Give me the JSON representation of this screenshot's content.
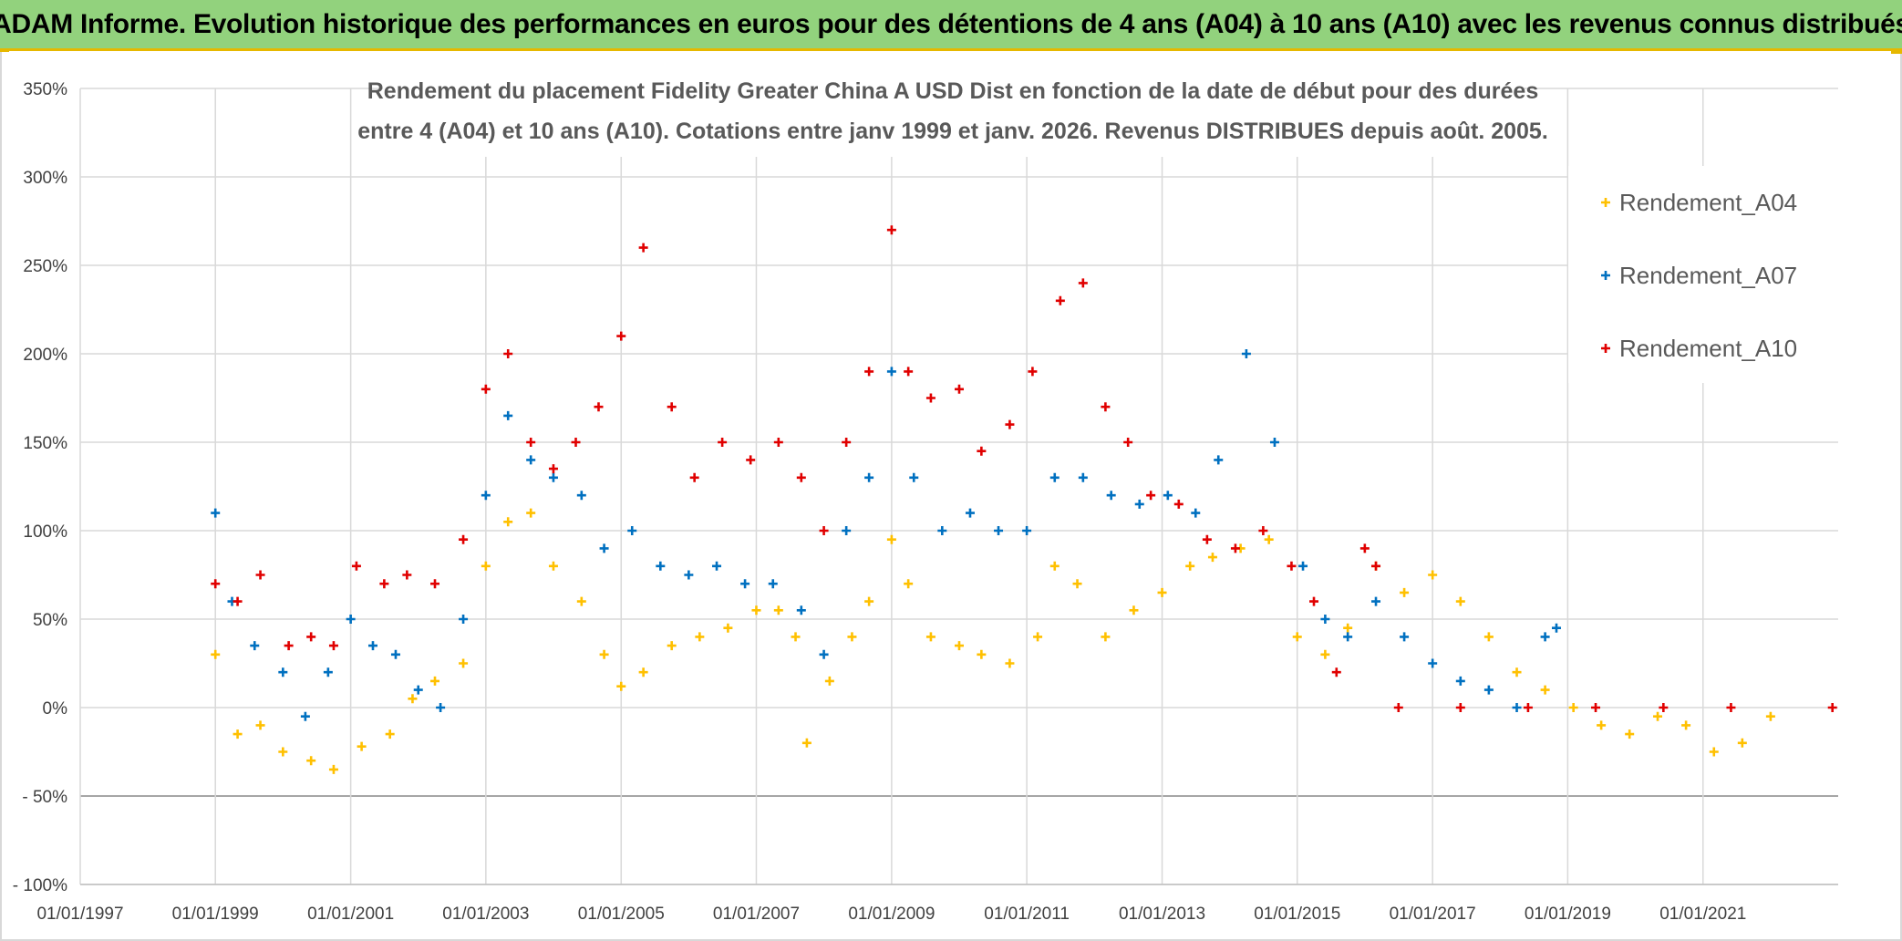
{
  "banner": {
    "title": "ADAM Informe. Evolution historique des performances en euros pour des détentions de 4 ans (A04) à 10 ans (A10) avec les revenus connus distribués"
  },
  "chart_data": {
    "type": "scatter",
    "title_line1": "Rendement du placement Fidelity Greater China A USD Dist en fonction de la date de début pour des durées",
    "title_line2": "entre 4 (A04) et 10 ans (A10). Cotations entre janv 1999 et janv. 2026. Revenus DISTRIBUES depuis août. 2005.",
    "x_ticks": [
      "01/01/1997",
      "01/01/1999",
      "01/01/2001",
      "01/01/2003",
      "01/01/2005",
      "01/01/2007",
      "01/01/2009",
      "01/01/2011",
      "01/01/2013",
      "01/01/2015",
      "01/01/2017",
      "01/01/2019",
      "01/01/2021"
    ],
    "y_ticks": [
      "350%",
      "300%",
      "250%",
      "200%",
      "150%",
      "100%",
      "50%",
      "0%",
      "- 50%",
      "- 100%"
    ],
    "xlim": [
      "1997-01-01",
      "2023-01-01"
    ],
    "ylim": [
      -100,
      350
    ],
    "grid": true,
    "legend_position": "top-right",
    "series": [
      {
        "name": "Rendement_A04",
        "color": "#ffc000",
        "points": [
          [
            "1999-01-01",
            30
          ],
          [
            "1999-05-01",
            -15
          ],
          [
            "1999-09-01",
            -10
          ],
          [
            "2000-01-01",
            -25
          ],
          [
            "2000-06-01",
            -30
          ],
          [
            "2000-10-01",
            -35
          ],
          [
            "2001-03-01",
            -22
          ],
          [
            "2001-08-01",
            -15
          ],
          [
            "2001-12-01",
            5
          ],
          [
            "2002-04-01",
            15
          ],
          [
            "2002-09-01",
            25
          ],
          [
            "2003-01-01",
            80
          ],
          [
            "2003-05-01",
            105
          ],
          [
            "2003-09-01",
            110
          ],
          [
            "2004-01-01",
            80
          ],
          [
            "2004-06-01",
            60
          ],
          [
            "2004-10-01",
            30
          ],
          [
            "2005-01-01",
            12
          ],
          [
            "2005-05-01",
            20
          ],
          [
            "2005-10-01",
            35
          ],
          [
            "2006-03-01",
            40
          ],
          [
            "2006-08-01",
            45
          ],
          [
            "2007-01-01",
            55
          ],
          [
            "2007-05-01",
            55
          ],
          [
            "2007-08-01",
            40
          ],
          [
            "2007-10-01",
            -20
          ],
          [
            "2008-02-01",
            15
          ],
          [
            "2008-06-01",
            40
          ],
          [
            "2008-09-01",
            60
          ],
          [
            "2009-01-01",
            95
          ],
          [
            "2009-04-01",
            70
          ],
          [
            "2009-08-01",
            40
          ],
          [
            "2010-01-01",
            35
          ],
          [
            "2010-05-01",
            30
          ],
          [
            "2010-10-01",
            25
          ],
          [
            "2011-03-01",
            40
          ],
          [
            "2011-06-01",
            80
          ],
          [
            "2011-10-01",
            70
          ],
          [
            "2012-03-01",
            40
          ],
          [
            "2012-08-01",
            55
          ],
          [
            "2013-01-01",
            65
          ],
          [
            "2013-06-01",
            80
          ],
          [
            "2013-10-01",
            85
          ],
          [
            "2014-03-01",
            90
          ],
          [
            "2014-08-01",
            95
          ],
          [
            "2015-01-01",
            40
          ],
          [
            "2015-06-01",
            30
          ],
          [
            "2015-10-01",
            45
          ],
          [
            "2016-03-01",
            80
          ],
          [
            "2016-08-01",
            65
          ],
          [
            "2017-01-01",
            75
          ],
          [
            "2017-06-01",
            60
          ],
          [
            "2017-11-01",
            40
          ],
          [
            "2018-04-01",
            20
          ],
          [
            "2018-09-01",
            10
          ],
          [
            "2019-02-01",
            0
          ],
          [
            "2019-07-01",
            -10
          ],
          [
            "2019-12-01",
            -15
          ],
          [
            "2020-05-01",
            -5
          ],
          [
            "2020-10-01",
            -10
          ],
          [
            "2021-03-01",
            -25
          ],
          [
            "2021-08-01",
            -20
          ],
          [
            "2022-01-01",
            -5
          ]
        ]
      },
      {
        "name": "Rendement_A07",
        "color": "#0070c0",
        "points": [
          [
            "1999-01-01",
            110
          ],
          [
            "1999-04-01",
            60
          ],
          [
            "1999-08-01",
            35
          ],
          [
            "2000-01-01",
            20
          ],
          [
            "2000-05-01",
            -5
          ],
          [
            "2000-09-01",
            20
          ],
          [
            "2001-01-01",
            50
          ],
          [
            "2001-05-01",
            35
          ],
          [
            "2001-09-01",
            30
          ],
          [
            "2002-01-01",
            10
          ],
          [
            "2002-05-01",
            0
          ],
          [
            "2002-09-01",
            50
          ],
          [
            "2003-01-01",
            120
          ],
          [
            "2003-05-01",
            165
          ],
          [
            "2003-09-01",
            140
          ],
          [
            "2004-01-01",
            130
          ],
          [
            "2004-06-01",
            120
          ],
          [
            "2004-10-01",
            90
          ],
          [
            "2005-03-01",
            100
          ],
          [
            "2005-08-01",
            80
          ],
          [
            "2006-01-01",
            75
          ],
          [
            "2006-06-01",
            80
          ],
          [
            "2006-11-01",
            70
          ],
          [
            "2007-04-01",
            70
          ],
          [
            "2007-09-01",
            55
          ],
          [
            "2008-01-01",
            30
          ],
          [
            "2008-05-01",
            100
          ],
          [
            "2008-09-01",
            130
          ],
          [
            "2009-01-01",
            190
          ],
          [
            "2009-05-01",
            130
          ],
          [
            "2009-10-01",
            100
          ],
          [
            "2010-03-01",
            110
          ],
          [
            "2010-08-01",
            100
          ],
          [
            "2011-01-01",
            100
          ],
          [
            "2011-06-01",
            130
          ],
          [
            "2011-11-01",
            130
          ],
          [
            "2012-04-01",
            120
          ],
          [
            "2012-09-01",
            115
          ],
          [
            "2013-02-01",
            120
          ],
          [
            "2013-07-01",
            110
          ],
          [
            "2013-11-01",
            140
          ],
          [
            "2014-04-01",
            200
          ],
          [
            "2014-09-01",
            150
          ],
          [
            "2015-02-01",
            80
          ],
          [
            "2015-06-01",
            50
          ],
          [
            "2015-10-01",
            40
          ],
          [
            "2016-03-01",
            60
          ],
          [
            "2016-08-01",
            40
          ],
          [
            "2017-01-01",
            25
          ],
          [
            "2017-06-01",
            15
          ],
          [
            "2017-11-01",
            10
          ],
          [
            "2018-04-01",
            0
          ],
          [
            "2018-09-01",
            40
          ],
          [
            "2018-11-01",
            45
          ]
        ]
      },
      {
        "name": "Rendement_A10",
        "color": "#e00000",
        "points": [
          [
            "1999-01-01",
            70
          ],
          [
            "1999-05-01",
            60
          ],
          [
            "1999-09-01",
            75
          ],
          [
            "2000-02-01",
            35
          ],
          [
            "2000-06-01",
            40
          ],
          [
            "2000-10-01",
            35
          ],
          [
            "2001-02-01",
            80
          ],
          [
            "2001-07-01",
            70
          ],
          [
            "2001-11-01",
            75
          ],
          [
            "2002-04-01",
            70
          ],
          [
            "2002-09-01",
            95
          ],
          [
            "2003-01-01",
            180
          ],
          [
            "2003-05-01",
            200
          ],
          [
            "2003-09-01",
            150
          ],
          [
            "2004-01-01",
            135
          ],
          [
            "2004-05-01",
            150
          ],
          [
            "2004-09-01",
            170
          ],
          [
            "2005-01-01",
            210
          ],
          [
            "2005-05-01",
            260
          ],
          [
            "2005-10-01",
            170
          ],
          [
            "2006-02-01",
            130
          ],
          [
            "2006-07-01",
            150
          ],
          [
            "2006-12-01",
            140
          ],
          [
            "2007-05-01",
            150
          ],
          [
            "2007-09-01",
            130
          ],
          [
            "2008-01-01",
            100
          ],
          [
            "2008-05-01",
            150
          ],
          [
            "2008-09-01",
            190
          ],
          [
            "2009-01-01",
            270
          ],
          [
            "2009-04-01",
            190
          ],
          [
            "2009-08-01",
            175
          ],
          [
            "2010-01-01",
            180
          ],
          [
            "2010-05-01",
            145
          ],
          [
            "2010-10-01",
            160
          ],
          [
            "2011-02-01",
            190
          ],
          [
            "2011-07-01",
            230
          ],
          [
            "2011-11-01",
            240
          ],
          [
            "2012-03-01",
            170
          ],
          [
            "2012-07-01",
            150
          ],
          [
            "2012-11-01",
            120
          ],
          [
            "2013-04-01",
            115
          ],
          [
            "2013-09-01",
            95
          ],
          [
            "2014-02-01",
            90
          ],
          [
            "2014-07-01",
            100
          ],
          [
            "2014-12-01",
            80
          ],
          [
            "2015-04-01",
            60
          ],
          [
            "2015-08-01",
            20
          ],
          [
            "2016-01-01",
            90
          ],
          [
            "2016-03-01",
            80
          ],
          [
            "2016-07-01",
            0
          ],
          [
            "2017-06-01",
            0
          ],
          [
            "2018-06-01",
            0
          ],
          [
            "2019-06-01",
            0
          ],
          [
            "2020-06-01",
            0
          ],
          [
            "2021-06-01",
            0
          ],
          [
            "2022-12-01",
            0
          ]
        ]
      }
    ]
  }
}
